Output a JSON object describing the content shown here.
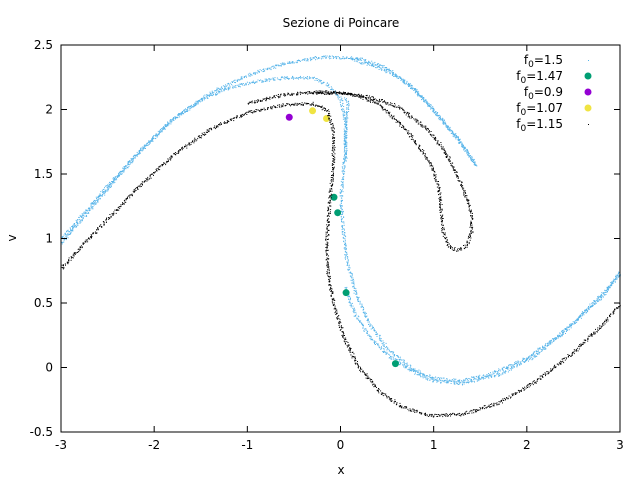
{
  "chart_data": {
    "type": "scatter",
    "title": "Sezione di Poincare",
    "xlabel": "x",
    "ylabel": "v",
    "xlim": [
      -3,
      3
    ],
    "ylim": [
      -0.5,
      2.5
    ],
    "xticks": [
      "-3",
      "-2",
      "-1",
      "0",
      "1",
      "2",
      "3"
    ],
    "yticks": [
      "-0.5",
      "0",
      "0.5",
      "1",
      "1.5",
      "2",
      "2.5"
    ],
    "grid": false,
    "legend_position": "top-right",
    "series": [
      {
        "name": "f0=1.5",
        "label_base": "f",
        "label_sub": "0",
        "label_value": "=1.5",
        "color": "#56b4e9",
        "marker": "dot",
        "curves": [
          [
            [
              -3.0,
              0.97
            ],
            [
              -2.7,
              1.22
            ],
            [
              -2.4,
              1.48
            ],
            [
              -2.1,
              1.72
            ],
            [
              -1.8,
              1.93
            ],
            [
              -1.5,
              2.08
            ],
            [
              -1.2,
              2.17
            ],
            [
              -0.9,
              2.22
            ],
            [
              -0.6,
              2.25
            ],
            [
              -0.3,
              2.25
            ],
            [
              -0.15,
              2.2
            ],
            [
              0.0,
              2.08
            ],
            [
              0.05,
              1.9
            ],
            [
              0.05,
              1.7
            ],
            [
              0.02,
              1.5
            ],
            [
              0.0,
              1.3
            ],
            [
              0.02,
              1.1
            ],
            [
              0.06,
              0.85
            ],
            [
              0.15,
              0.6
            ],
            [
              0.3,
              0.35
            ],
            [
              0.5,
              0.15
            ],
            [
              0.75,
              0.0
            ],
            [
              1.0,
              -0.08
            ],
            [
              1.3,
              -0.1
            ],
            [
              1.6,
              -0.05
            ],
            [
              2.0,
              0.08
            ],
            [
              2.4,
              0.28
            ],
            [
              2.7,
              0.5
            ],
            [
              3.0,
              0.72
            ]
          ],
          [
            [
              -3.0,
              1.0
            ],
            [
              -2.6,
              1.33
            ],
            [
              -2.2,
              1.65
            ],
            [
              -1.8,
              1.93
            ],
            [
              -1.4,
              2.13
            ],
            [
              -1.0,
              2.27
            ],
            [
              -0.6,
              2.36
            ],
            [
              -0.2,
              2.41
            ],
            [
              0.2,
              2.4
            ],
            [
              0.5,
              2.32
            ],
            [
              0.8,
              2.15
            ],
            [
              1.05,
              1.95
            ],
            [
              1.25,
              1.78
            ],
            [
              1.4,
              1.63
            ],
            [
              1.45,
              1.57
            ],
            [
              1.4,
              1.62
            ],
            [
              1.25,
              1.78
            ],
            [
              1.0,
              2.0
            ],
            [
              0.7,
              2.22
            ],
            [
              0.4,
              2.33
            ],
            [
              0.1,
              2.4
            ]
          ],
          [
            [
              0.05,
              0.62
            ],
            [
              0.15,
              0.42
            ],
            [
              0.3,
              0.25
            ],
            [
              0.5,
              0.1
            ],
            [
              0.75,
              -0.02
            ],
            [
              1.0,
              -0.1
            ],
            [
              1.3,
              -0.12
            ],
            [
              1.7,
              -0.05
            ],
            [
              2.1,
              0.1
            ],
            [
              2.5,
              0.35
            ],
            [
              2.8,
              0.55
            ],
            [
              3.0,
              0.75
            ]
          ],
          [
            [
              0.05,
              1.6
            ],
            [
              0.05,
              1.9
            ],
            [
              0.08,
              2.05
            ],
            [
              0.05,
              2.1
            ]
          ]
        ]
      },
      {
        "name": "f0=1.47",
        "label_base": "f",
        "label_sub": "0",
        "label_value": "=1.47",
        "color": "#009e73",
        "marker": "circle",
        "points": [
          [
            -0.07,
            1.32
          ],
          [
            -0.03,
            1.2
          ],
          [
            0.06,
            0.58
          ],
          [
            0.59,
            0.03
          ]
        ]
      },
      {
        "name": "f0=0.9",
        "label_base": "f",
        "label_sub": "0",
        "label_value": "=0.9",
        "color": "#9400d3",
        "marker": "circle",
        "points": [
          [
            -0.55,
            1.94
          ]
        ]
      },
      {
        "name": "f0=1.07",
        "label_base": "f",
        "label_sub": "0",
        "label_value": "=1.07",
        "color": "#f0e442",
        "marker": "circle",
        "points": [
          [
            -0.3,
            1.99
          ],
          [
            -0.15,
            1.93
          ]
        ]
      },
      {
        "name": "f0=1.15",
        "label_base": "f",
        "label_sub": "0",
        "label_value": "=1.15",
        "color": "#000000",
        "marker": "dot",
        "curves": [
          [
            [
              -3.0,
              0.77
            ],
            [
              -2.6,
              1.08
            ],
            [
              -2.2,
              1.38
            ],
            [
              -1.8,
              1.65
            ],
            [
              -1.4,
              1.85
            ],
            [
              -1.0,
              1.98
            ],
            [
              -0.6,
              2.04
            ],
            [
              -0.3,
              2.05
            ],
            [
              -0.15,
              2.0
            ],
            [
              -0.08,
              1.85
            ],
            [
              -0.08,
              1.6
            ],
            [
              -0.12,
              1.3
            ],
            [
              -0.15,
              1.0
            ],
            [
              -0.14,
              0.75
            ],
            [
              -0.08,
              0.5
            ],
            [
              0.05,
              0.2
            ],
            [
              0.2,
              0.0
            ],
            [
              0.4,
              -0.17
            ],
            [
              0.65,
              -0.3
            ],
            [
              0.95,
              -0.37
            ],
            [
              1.3,
              -0.36
            ],
            [
              1.7,
              -0.27
            ],
            [
              2.1,
              -0.1
            ],
            [
              2.5,
              0.12
            ],
            [
              2.8,
              0.33
            ],
            [
              3.0,
              0.5
            ]
          ],
          [
            [
              -1.0,
              2.05
            ],
            [
              -0.6,
              2.12
            ],
            [
              -0.2,
              2.14
            ],
            [
              0.1,
              2.13
            ],
            [
              0.4,
              2.05
            ],
            [
              0.7,
              1.85
            ],
            [
              0.95,
              1.6
            ],
            [
              1.05,
              1.4
            ],
            [
              1.08,
              1.2
            ],
            [
              1.1,
              1.05
            ],
            [
              1.15,
              0.95
            ],
            [
              1.25,
              0.91
            ],
            [
              1.35,
              0.95
            ],
            [
              1.4,
              1.05
            ],
            [
              1.4,
              1.2
            ],
            [
              1.3,
              1.42
            ],
            [
              1.1,
              1.7
            ],
            [
              0.9,
              1.87
            ],
            [
              0.6,
              2.03
            ],
            [
              0.3,
              2.1
            ],
            [
              0.0,
              2.13
            ],
            [
              -0.3,
              2.13
            ]
          ]
        ]
      }
    ]
  }
}
